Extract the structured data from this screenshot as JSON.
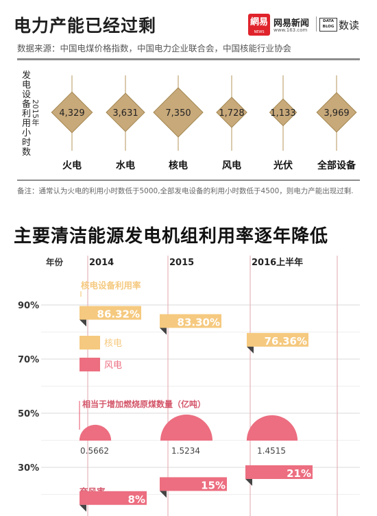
{
  "header": {
    "title": "电力产能已经过剩",
    "brand_name": "网易新闻",
    "brand_url": "www.163.com",
    "logo_char": "網易",
    "logo_small": "NEWS",
    "data_box_line1": "DATA",
    "data_box_line2": "BLOG",
    "data_label": "数读",
    "subtitle": "数据来源：中国电煤价格指数，中国电力企业联合会，中国核能行业协会"
  },
  "top_chart": {
    "ylabel": "发电设备利用小时数",
    "year_label": "2015年",
    "items": [
      {
        "name": "火电",
        "value": 4329,
        "value_label": "4,329"
      },
      {
        "name": "水电",
        "value": 3631,
        "value_label": "3,631"
      },
      {
        "name": "核电",
        "value": 7350,
        "value_label": "7,350"
      },
      {
        "name": "风电",
        "value": 1728,
        "value_label": "1,728"
      },
      {
        "name": "光伏",
        "value": 1133,
        "value_label": "1,133"
      },
      {
        "name": "全部设备",
        "value": 3969,
        "value_label": "3,969"
      }
    ],
    "diamond_color": "#c8a97a",
    "diamond_border": "#a2864f"
  },
  "note": "备注：通常认为火电的利用小时数低于5000,全部发电设备的利用小时数低于4500，则电力产能出现过剩.",
  "section_title": "主要清洁能源发电机组利用率逐年降低",
  "chart_data": {
    "type": "bar",
    "title": "主要清洁能源发电机组利用率逐年降低",
    "x_axis_label": "年份",
    "categories": [
      "2014",
      "2015",
      "2016上半年"
    ],
    "y_ticks": [
      "90%",
      "70%",
      "50%",
      "30%"
    ],
    "series": [
      {
        "name": "核电",
        "annotation": "核电设备利用率",
        "values": [
          86.32,
          83.3,
          76.36
        ],
        "labels": [
          "86.32%",
          "83.30%",
          "76.36%"
        ],
        "color": "#f5c97f"
      },
      {
        "name": "风电",
        "annotation": "弃风率",
        "values": [
          8,
          15,
          21
        ],
        "labels": [
          "8%",
          "15%",
          "21%"
        ],
        "color": "#ec6e80"
      }
    ],
    "coal": {
      "label": "相当于增加燃烧原煤数量（亿吨）",
      "values": [
        0.5662,
        1.5234,
        1.4515
      ],
      "labels": [
        "0.5662",
        "1.5234",
        "1.4515"
      ],
      "color": "#ec6e80"
    },
    "legend": [
      {
        "name": "核电",
        "color": "#f5c97f"
      },
      {
        "name": "风电",
        "color": "#ec6e80"
      }
    ]
  }
}
